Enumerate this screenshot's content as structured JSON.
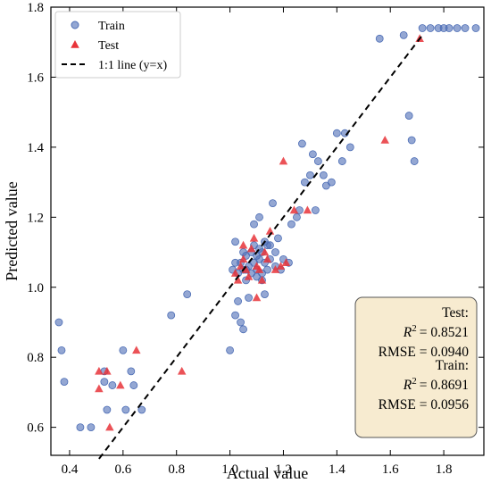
{
  "chart_data": {
    "type": "scatter",
    "xlabel": "Actual value",
    "ylabel": "Predicted value",
    "xlim": [
      0.33,
      1.95
    ],
    "ylim": [
      0.52,
      1.8
    ],
    "xticks": [
      "0.4",
      "0.6",
      "0.8",
      "1.0",
      "1.2",
      "1.4",
      "1.6",
      "1.8"
    ],
    "yticks": [
      "0.6",
      "0.8",
      "1.0",
      "1.2",
      "1.4",
      "1.6",
      "1.8"
    ],
    "legend": {
      "position": "top-left",
      "entries": [
        {
          "label": "Train",
          "marker": "circle",
          "color": "#4c6db5"
        },
        {
          "label": "Test",
          "marker": "triangle",
          "color": "#e8343a"
        },
        {
          "label": "1:1 line (y=x)",
          "marker": "dashed-line",
          "color": "#000000"
        }
      ]
    },
    "reference_line": {
      "label": "1:1 line (y=x)",
      "x": [
        0.51,
        1.72
      ],
      "y": [
        0.51,
        1.72
      ],
      "style": "dashed"
    },
    "stats_box": {
      "position": "bottom-right",
      "background": "#f7ebd0",
      "test_title": "Test:",
      "test_r2_label": "R",
      "test_r2_value": "= 0.8521",
      "test_rmse": "RMSE = 0.0940",
      "train_title": "Train:",
      "train_r2_label": "R",
      "train_r2_value": "= 0.8691",
      "train_rmse": "RMSE = 0.0956"
    },
    "series": [
      {
        "name": "Train",
        "marker": "circle",
        "color": "#4c6db5",
        "points": [
          [
            0.36,
            0.9
          ],
          [
            0.37,
            0.82
          ],
          [
            0.38,
            0.73
          ],
          [
            0.44,
            0.6
          ],
          [
            0.48,
            0.6
          ],
          [
            0.53,
            0.76
          ],
          [
            0.53,
            0.73
          ],
          [
            0.54,
            0.65
          ],
          [
            0.56,
            0.72
          ],
          [
            0.6,
            0.82
          ],
          [
            0.61,
            0.65
          ],
          [
            0.63,
            0.76
          ],
          [
            0.64,
            0.72
          ],
          [
            0.67,
            0.65
          ],
          [
            0.78,
            0.92
          ],
          [
            0.84,
            0.98
          ],
          [
            1.0,
            0.82
          ],
          [
            1.01,
            1.05
          ],
          [
            1.02,
            0.92
          ],
          [
            1.02,
            1.13
          ],
          [
            1.03,
            0.96
          ],
          [
            1.04,
            0.9
          ],
          [
            1.05,
            0.88
          ],
          [
            1.06,
            1.02
          ],
          [
            1.07,
            0.97
          ],
          [
            1.08,
            1.1
          ],
          [
            1.09,
            1.18
          ],
          [
            1.1,
            1.05
          ],
          [
            1.11,
            1.2
          ],
          [
            1.12,
            1.02
          ],
          [
            1.13,
            0.98
          ],
          [
            1.14,
            1.12
          ],
          [
            1.15,
            1.08
          ],
          [
            1.16,
            1.24
          ],
          [
            1.17,
            1.06
          ],
          [
            1.18,
            1.14
          ],
          [
            1.2,
            1.08
          ],
          [
            1.22,
            1.07
          ],
          [
            1.23,
            1.18
          ],
          [
            1.25,
            1.2
          ],
          [
            1.26,
            1.22
          ],
          [
            1.27,
            1.41
          ],
          [
            1.28,
            1.3
          ],
          [
            1.3,
            1.32
          ],
          [
            1.31,
            1.38
          ],
          [
            1.32,
            1.22
          ],
          [
            1.33,
            1.36
          ],
          [
            1.35,
            1.32
          ],
          [
            1.36,
            1.29
          ],
          [
            1.38,
            1.3
          ],
          [
            1.4,
            1.44
          ],
          [
            1.42,
            1.36
          ],
          [
            1.43,
            1.44
          ],
          [
            1.45,
            1.4
          ],
          [
            1.04,
            1.07
          ],
          [
            1.05,
            1.05
          ],
          [
            1.06,
            1.09
          ],
          [
            1.07,
            1.06
          ],
          [
            1.08,
            1.04
          ],
          [
            1.09,
            1.07
          ],
          [
            1.1,
            1.03
          ],
          [
            1.11,
            1.08
          ],
          [
            1.12,
            1.04
          ],
          [
            1.13,
            1.07
          ],
          [
            1.14,
            1.05
          ],
          [
            1.02,
            1.07
          ],
          [
            1.03,
            1.04
          ],
          [
            1.05,
            1.1
          ],
          [
            1.06,
            1.05
          ],
          [
            1.09,
            1.12
          ],
          [
            1.1,
            1.09
          ],
          [
            1.11,
            1.11
          ],
          [
            1.12,
            1.1
          ],
          [
            1.13,
            1.13
          ],
          [
            1.15,
            1.12
          ],
          [
            1.17,
            1.1
          ],
          [
            1.19,
            1.05
          ],
          [
            1.56,
            1.71
          ],
          [
            1.65,
            1.72
          ],
          [
            1.67,
            1.49
          ],
          [
            1.68,
            1.42
          ],
          [
            1.69,
            1.36
          ],
          [
            1.72,
            1.74
          ],
          [
            1.75,
            1.74
          ],
          [
            1.78,
            1.74
          ],
          [
            1.8,
            1.74
          ],
          [
            1.82,
            1.74
          ],
          [
            1.85,
            1.74
          ],
          [
            1.88,
            1.74
          ],
          [
            1.92,
            1.74
          ]
        ]
      },
      {
        "name": "Test",
        "marker": "triangle",
        "color": "#e8343a",
        "points": [
          [
            0.51,
            0.76
          ],
          [
            0.51,
            0.71
          ],
          [
            0.54,
            0.76
          ],
          [
            0.55,
            0.6
          ],
          [
            0.59,
            0.72
          ],
          [
            0.65,
            0.82
          ],
          [
            0.82,
            0.76
          ],
          [
            1.02,
            1.04
          ],
          [
            1.03,
            1.02
          ],
          [
            1.04,
            1.06
          ],
          [
            1.05,
            1.08
          ],
          [
            1.06,
            1.05
          ],
          [
            1.07,
            1.03
          ],
          [
            1.08,
            1.11
          ],
          [
            1.09,
            1.14
          ],
          [
            1.1,
            1.06
          ],
          [
            1.11,
            1.05
          ],
          [
            1.12,
            1.02
          ],
          [
            1.13,
            1.1
          ],
          [
            1.14,
            1.08
          ],
          [
            1.15,
            1.16
          ],
          [
            1.17,
            1.05
          ],
          [
            1.19,
            1.06
          ],
          [
            1.2,
            1.36
          ],
          [
            1.21,
            1.07
          ],
          [
            1.24,
            1.22
          ],
          [
            1.29,
            1.22
          ],
          [
            1.58,
            1.42
          ],
          [
            1.71,
            1.71
          ],
          [
            1.05,
            1.12
          ],
          [
            1.1,
            0.97
          ]
        ]
      }
    ]
  }
}
